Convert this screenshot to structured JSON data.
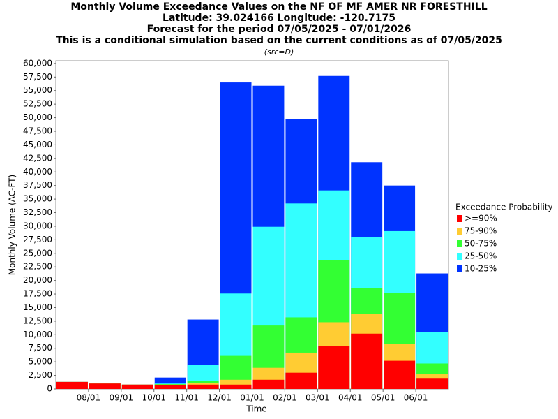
{
  "chart_data": {
    "type": "overlay_bar",
    "title": [
      "Monthly Volume Exceedance Values on the NF OF MF AMER NR FORESTHILL",
      "Latitude: 39.024166 Longitude: -120.7175",
      "Forecast for the period 07/05/2025 - 07/01/2026",
      "This is a conditional simulation based on the current conditions as of 07/05/2025"
    ],
    "subtitle": "(src=D)",
    "x_label": "Time",
    "y_label": "Monthly Volume (AC-FT)",
    "legend_title": "Exceedance Probability",
    "categories": [
      null,
      "08/01",
      "09/01",
      "10/01",
      "11/01",
      "12/01",
      "01/01",
      "02/01",
      "03/01",
      "04/01",
      "05/01",
      "06/01"
    ],
    "series": [
      {
        "name": ">=90%",
        "color": "#ff0000",
        "values": [
          1300,
          1000,
          800,
          700,
          800,
          800,
          1700,
          3000,
          7900,
          10200,
          5200,
          1900
        ]
      },
      {
        "name": "75-90%",
        "color": "#ffcc33",
        "values": [
          1300,
          1000,
          800,
          800,
          1100,
          1700,
          3900,
          6700,
          12300,
          13800,
          8300,
          2700
        ]
      },
      {
        "name": "50-75%",
        "color": "#33ff33",
        "values": [
          1300,
          1000,
          800,
          900,
          1500,
          6100,
          11700,
          13200,
          23800,
          18600,
          17700,
          4700
        ]
      },
      {
        "name": "25-50%",
        "color": "#33ffff",
        "values": [
          1300,
          1000,
          800,
          1000,
          4500,
          17600,
          29900,
          34200,
          36600,
          28000,
          29100,
          10500
        ]
      },
      {
        "name": "10-25%",
        "color": "#0033ff",
        "values": [
          1300,
          1000,
          800,
          2100,
          12800,
          56500,
          55900,
          49800,
          57700,
          41800,
          37500,
          21300
        ]
      }
    ],
    "ylim": [
      0,
      60500
    ],
    "yticks": [
      0,
      {
        "value": 2500,
        "label": "2,500"
      },
      {
        "value": 5000,
        "label": "5,000"
      },
      {
        "value": 7500,
        "label": "7,500"
      },
      {
        "value": 10000,
        "label": "10,000"
      },
      {
        "value": 12500,
        "label": "12,500"
      },
      {
        "value": 15000,
        "label": "15,000"
      },
      {
        "value": 17500,
        "label": "17,500"
      },
      {
        "value": 20000,
        "label": "20,000"
      },
      {
        "value": 22500,
        "label": "22,500"
      },
      {
        "value": 25000,
        "label": "25,000"
      },
      {
        "value": 27500,
        "label": "27,500"
      },
      {
        "value": 30000,
        "label": "30,000"
      },
      {
        "value": 32500,
        "label": "32,500"
      },
      {
        "value": 35000,
        "label": "35,000"
      },
      {
        "value": 37500,
        "label": "37,500"
      },
      {
        "value": 40000,
        "label": "40,000"
      },
      {
        "value": 42500,
        "label": "42,500"
      },
      {
        "value": 45000,
        "label": "45,000"
      },
      {
        "value": 47500,
        "label": "47,500"
      },
      {
        "value": 50000,
        "label": "50,000"
      },
      {
        "value": 52500,
        "label": "52,500"
      },
      {
        "value": 55000,
        "label": "55,000"
      },
      {
        "value": 57500,
        "label": "57,500"
      },
      {
        "value": 60000,
        "label": "60,000"
      }
    ],
    "legend": "right"
  }
}
